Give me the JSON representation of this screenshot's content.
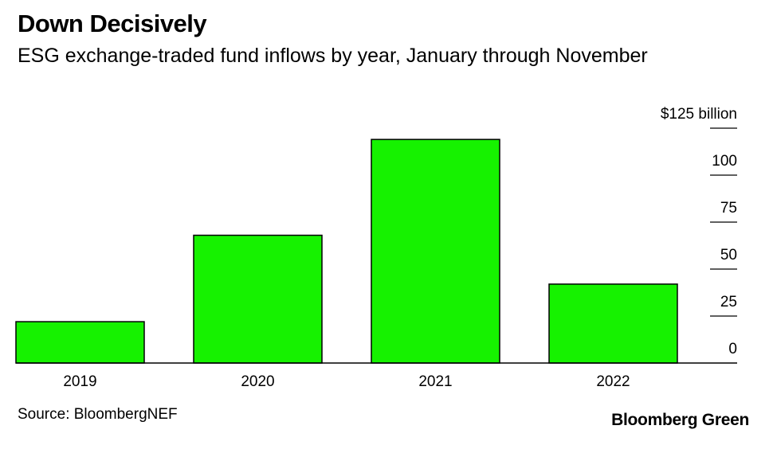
{
  "header": {
    "title": "Down Decisively",
    "subtitle": "ESG exchange-traded fund inflows by year, January through November"
  },
  "footer": {
    "source": "Source: BloombergNEF",
    "brand": "Bloomberg Green"
  },
  "chart_data": {
    "type": "bar",
    "title": "Down Decisively",
    "subtitle": "ESG exchange-traded fund inflows by year, January through November",
    "categories": [
      "2019",
      "2020",
      "2021",
      "2022"
    ],
    "values": [
      22,
      68,
      119,
      42
    ],
    "ylim": [
      0,
      125
    ],
    "y_ticks": [
      {
        "value": 125,
        "label": "$125 billion"
      },
      {
        "value": 100,
        "label": "100"
      },
      {
        "value": 75,
        "label": "75"
      },
      {
        "value": 50,
        "label": "50"
      },
      {
        "value": 25,
        "label": "25"
      },
      {
        "value": 0,
        "label": "0"
      }
    ],
    "axis_position": "right",
    "grid": false,
    "colors": {
      "bar": "#16f200",
      "bar_outline": "#000000",
      "axis": "#000000"
    }
  }
}
